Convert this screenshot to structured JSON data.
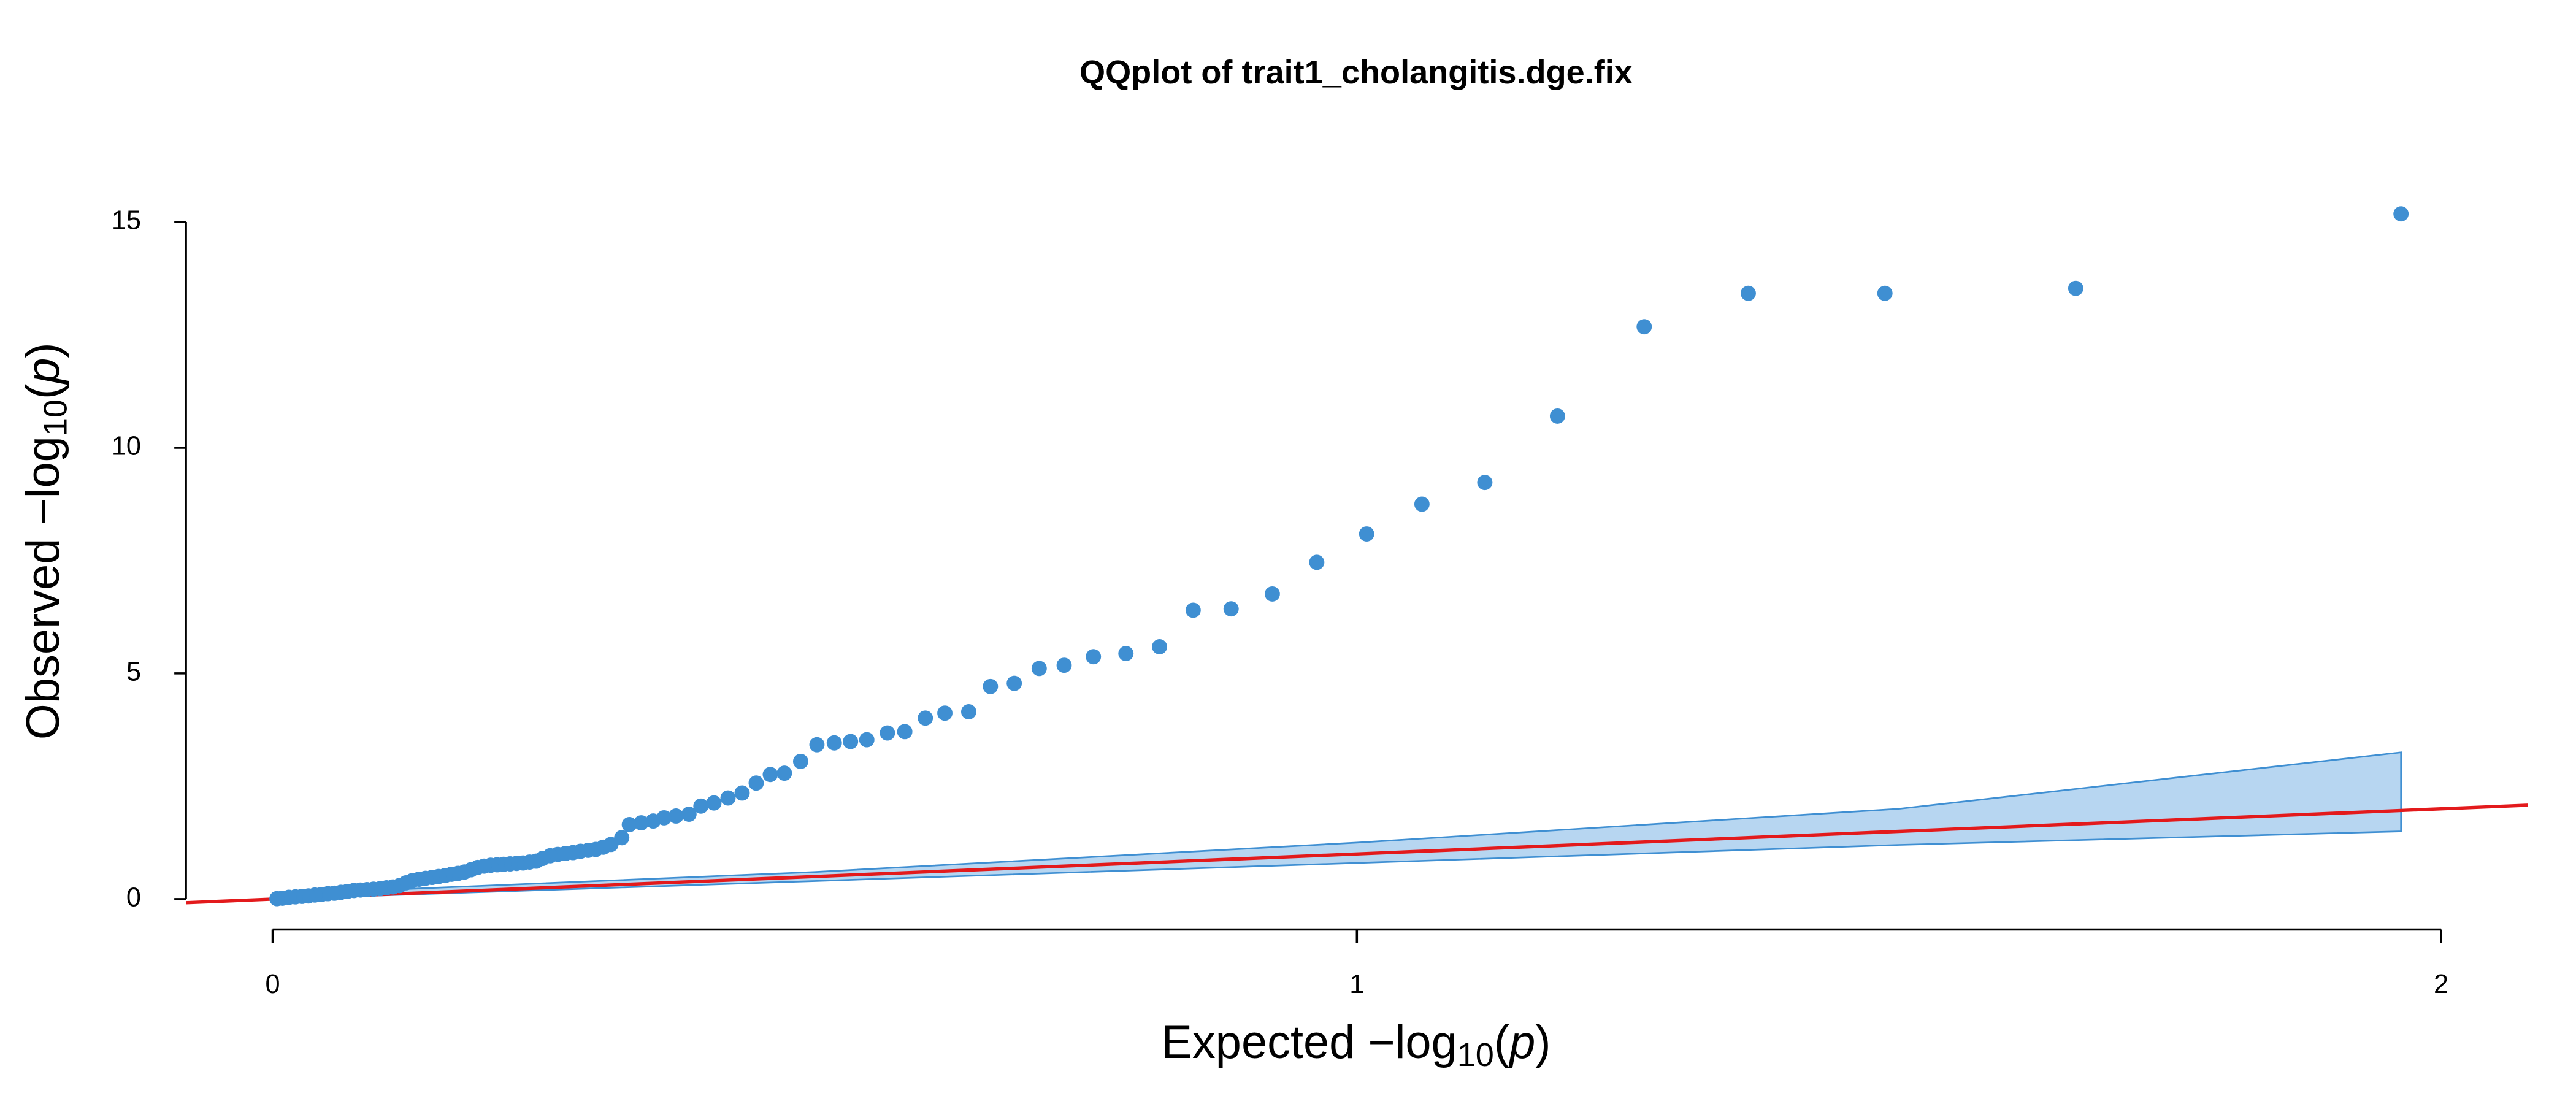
{
  "chart_data": {
    "type": "qq",
    "title": "QQplot of trait1_cholangitis.dge.fix",
    "xlabel": [
      "Expected  −log",
      "10",
      "(",
      "p",
      ")"
    ],
    "ylabel": [
      "Observed  −log",
      "10",
      "(",
      "p",
      ")"
    ],
    "xlim": [
      -0.08,
      2.08
    ],
    "ylim": [
      -0.6,
      15.8
    ],
    "xticks": [
      0,
      1,
      2
    ],
    "yticks": [
      0,
      5,
      10,
      15
    ],
    "point_color": "#3f8fd2",
    "band": {
      "x": [
        0,
        0.5,
        1.0,
        1.5,
        1.963
      ],
      "upper": [
        0.1,
        0.6,
        1.25,
        2.0,
        3.25
      ],
      "lower": [
        0,
        0.4,
        0.8,
        1.2,
        1.5
      ],
      "fill": "#b7d6f1",
      "stroke": "#3f8fd2"
    },
    "reference_line": {
      "slope": 1,
      "intercept": 0,
      "color": "#e31a1c"
    },
    "x": [
      1.963,
      1.663,
      1.487,
      1.361,
      1.265,
      1.185,
      1.118,
      1.06,
      1.009,
      0.963,
      0.922,
      0.884,
      0.849,
      0.818,
      0.787,
      0.757,
      0.73,
      0.707,
      0.684,
      0.662,
      0.642,
      0.62,
      0.602,
      0.583,
      0.567,
      0.548,
      0.533,
      0.518,
      0.502,
      0.487,
      0.472,
      0.459,
      0.446,
      0.433,
      0.42,
      0.407,
      0.395,
      0.384,
      0.372,
      0.361,
      0.351,
      0.34,
      0.329,
      0.322,
      0.312,
      0.305,
      0.298,
      0.291,
      0.284,
      0.277,
      0.27,
      0.263,
      0.256,
      0.249,
      0.243,
      0.237,
      0.231,
      0.225,
      0.219,
      0.213,
      0.207,
      0.201,
      0.195,
      0.189,
      0.183,
      0.177,
      0.171,
      0.165,
      0.159,
      0.153,
      0.147,
      0.141,
      0.135,
      0.129,
      0.123,
      0.117,
      0.111,
      0.105,
      0.099,
      0.093,
      0.087,
      0.081,
      0.075,
      0.069,
      0.063,
      0.057,
      0.051,
      0.045,
      0.039,
      0.033,
      0.027,
      0.021,
      0.015,
      0.009,
      0.004
    ],
    "y": [
      15.18,
      13.53,
      13.42,
      13.42,
      12.68,
      10.7,
      9.23,
      8.75,
      8.09,
      7.46,
      6.76,
      6.43,
      6.4,
      5.59,
      5.44,
      5.37,
      5.18,
      5.11,
      4.78,
      4.71,
      4.15,
      4.12,
      4.01,
      3.71,
      3.68,
      3.53,
      3.49,
      3.46,
      3.42,
      3.05,
      2.79,
      2.76,
      2.57,
      2.35,
      2.24,
      2.13,
      2.06,
      1.88,
      1.84,
      1.8,
      1.73,
      1.69,
      1.65,
      1.36,
      1.21,
      1.15,
      1.1,
      1.08,
      1.06,
      1.03,
      1.01,
      0.99,
      0.96,
      0.9,
      0.84,
      0.82,
      0.8,
      0.79,
      0.78,
      0.77,
      0.76,
      0.75,
      0.73,
      0.7,
      0.65,
      0.6,
      0.57,
      0.55,
      0.52,
      0.5,
      0.48,
      0.46,
      0.44,
      0.41,
      0.36,
      0.3,
      0.27,
      0.25,
      0.23,
      0.22,
      0.21,
      0.2,
      0.19,
      0.17,
      0.15,
      0.13,
      0.12,
      0.1,
      0.09,
      0.07,
      0.06,
      0.05,
      0.04,
      0.02,
      0.01
    ]
  }
}
